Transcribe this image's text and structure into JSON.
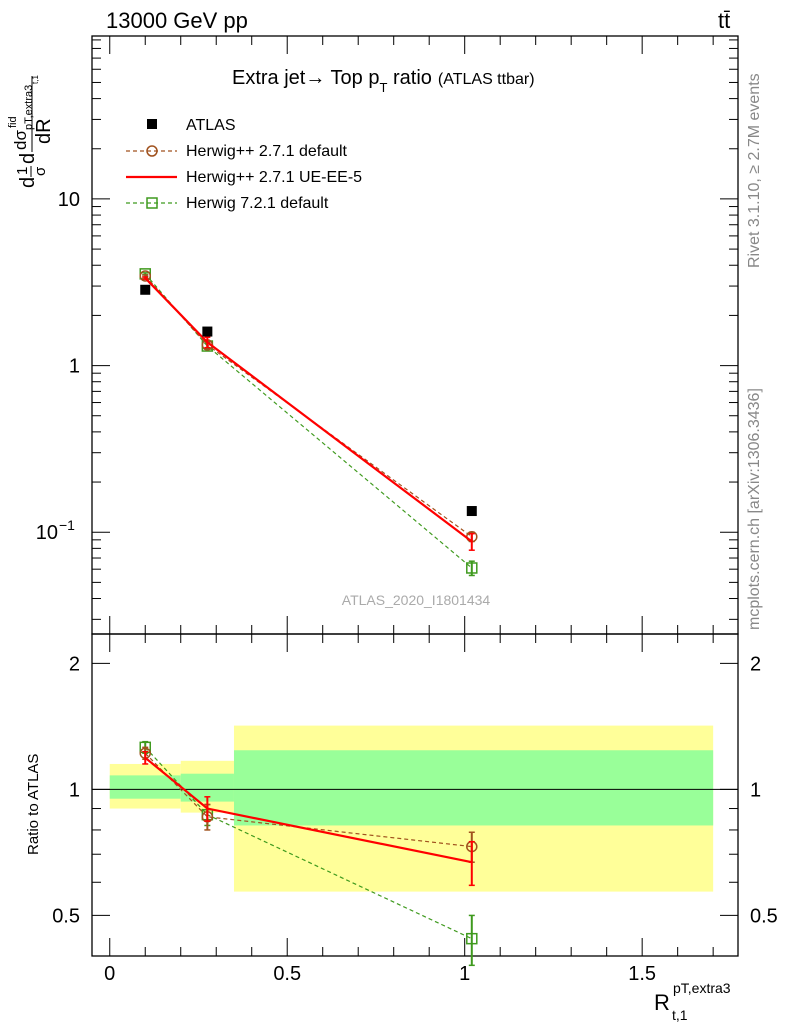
{
  "header": {
    "left": "13000 GeV pp",
    "right": "tt̄"
  },
  "side_labels": {
    "top": "Rivet 3.1.10, ≥ 2.7M events",
    "bottom": "mcplots.cern.ch [arXiv:1306.3436]"
  },
  "plot": {
    "title_main": "Extra jet→ Top p",
    "title_sub": "T",
    "title_tail": " ratio",
    "title_paren": "(ATLAS ttbar)",
    "watermark": "ATLAS_2020_I1801434"
  },
  "axes": {
    "y_main": {
      "d": "d",
      "one": "1",
      "sigma": "σ",
      "dsig": "dσ",
      "fid": "fid",
      "sub": "pT,extra3",
      "t1": "t,1",
      "dR": "dR"
    },
    "y_ratio": "Ratio to ATLAS",
    "x": {
      "R": "R",
      "sup": "pT,extra3",
      "sub": "t,1"
    }
  },
  "ticks": {
    "main_y": [
      {
        "v": 10,
        "label": "10"
      },
      {
        "v": 1,
        "label": "1"
      },
      {
        "v": 0.1,
        "label": "10",
        "sup": "−1"
      }
    ],
    "ratio_y": [
      {
        "v": 2,
        "label": "2"
      },
      {
        "v": 1,
        "label": "1"
      },
      {
        "v": 0.5,
        "label": "0.5"
      }
    ],
    "x": [
      {
        "v": 0,
        "label": "0"
      },
      {
        "v": 0.5,
        "label": "0.5"
      },
      {
        "v": 1,
        "label": "1"
      },
      {
        "v": 1.5,
        "label": "1.5"
      }
    ]
  },
  "legend": [
    {
      "key": "atlas",
      "label": "ATLAS"
    },
    {
      "key": "h271",
      "label": "Herwig++ 2.7.1 default"
    },
    {
      "key": "h271ue",
      "label": "Herwig++ 2.7.1 UE-EE-5"
    },
    {
      "key": "h721",
      "label": "Herwig 7.2.1 default"
    }
  ],
  "colors": {
    "atlas": "#000000",
    "h271": "#a0521e",
    "h271ue": "#ff0000",
    "h721": "#3f9a1e",
    "band_inner": "#99ff99",
    "band_outer": "#ffff99"
  },
  "chart_data": {
    "type": "scatter",
    "x_range": [
      -0.05,
      1.77
    ],
    "y_range": [
      0.0245,
      95
    ],
    "y_scale": "log",
    "ratio_y_range": [
      0.4,
      2.35
    ],
    "ratio_y_scale": "log",
    "bins": [
      {
        "lo": 0.0,
        "hi": 0.2
      },
      {
        "lo": 0.2,
        "hi": 0.35
      },
      {
        "lo": 0.35,
        "hi": 1.7
      }
    ],
    "x": [
      0.1,
      0.275,
      1.02
    ],
    "atlas": {
      "values": [
        2.85,
        1.6,
        0.134
      ]
    },
    "series": [
      {
        "key": "h271",
        "name": "Herwig++ 2.7.1 default",
        "values": [
          3.45,
          1.33,
          0.094
        ],
        "err": [
          0.05,
          0.05,
          0.006
        ],
        "ratio": [
          1.22,
          0.86,
          0.73
        ],
        "ratio_err": [
          0.04,
          0.06,
          0.06
        ]
      },
      {
        "key": "h271ue",
        "name": "Herwig++ 2.7.1 UE-EE-5",
        "values": [
          3.35,
          1.38,
          0.088
        ],
        "err": [
          0.05,
          0.1,
          0.01
        ],
        "ratio": [
          1.19,
          0.9,
          0.67
        ],
        "ratio_err": [
          0.04,
          0.06,
          0.08
        ]
      },
      {
        "key": "h721",
        "name": "Herwig 7.2.1 default",
        "values": [
          3.55,
          1.31,
          0.061
        ],
        "err": [
          0.05,
          0.05,
          0.006
        ],
        "ratio": [
          1.26,
          0.87,
          0.44
        ],
        "ratio_err": [
          0.04,
          0.05,
          0.06
        ]
      }
    ],
    "uncertainty_band": {
      "inner": [
        [
          0.95,
          1.08
        ],
        [
          0.935,
          1.09
        ],
        [
          0.82,
          1.24
        ]
      ],
      "outer": [
        [
          0.9,
          1.15
        ],
        [
          0.88,
          1.17
        ],
        [
          0.57,
          1.42
        ]
      ]
    }
  }
}
